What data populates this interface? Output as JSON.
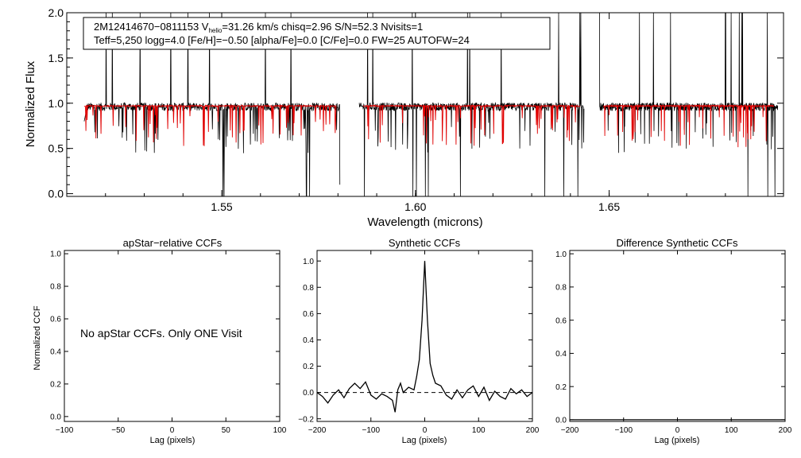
{
  "colors": {
    "observed": "#000000",
    "model": "#e00000",
    "background": "#ffffff"
  },
  "chart_data": [
    {
      "type": "line",
      "title": "",
      "xlabel": "Wavelength (microns)",
      "ylabel": "Normalized Flux",
      "xlim": [
        1.51,
        1.695
      ],
      "ylim": [
        -0.03,
        2.0
      ],
      "xticks": [
        "1.55",
        "1.60",
        "1.65"
      ],
      "xtick_values": [
        1.55,
        1.6,
        1.65
      ],
      "yticks": [
        "0.0",
        "0.5",
        "1.0",
        "1.5",
        "2.0"
      ],
      "ytick_values": [
        0.0,
        0.5,
        1.0,
        1.5,
        2.0
      ],
      "detector_ranges": [
        [
          1.5145,
          1.5805
        ],
        [
          1.5855,
          1.6435
        ],
        [
          1.6475,
          1.6935
        ]
      ],
      "model_ranges": [
        [
          1.5145,
          1.5795
        ],
        [
          1.5865,
          1.6425
        ],
        [
          1.6485,
          1.6925
        ]
      ],
      "continuum_level": 0.96,
      "model_level": 0.97,
      "annotation": {
        "line1_prefix": "2M12414670−0811153  V",
        "line1_sub": "helio",
        "line1_suffix": "=31.26 km/s  chisq=2.96  S/N=52.3  Nvisits=1",
        "line2": "Teff=5,250 logg=4.0 [Fe/H]=−0.50 [alpha/Fe]=0.0 [C/Fe]=0.0 FW=25 AUTOFW=24"
      }
    },
    {
      "type": "line",
      "title": "apStar−relative CCFs",
      "xlabel": "Lag (pixels)",
      "ylabel": "Normalized CCF",
      "xlim": [
        -100,
        100
      ],
      "ylim": [
        -0.03,
        1.02
      ],
      "xticks": [
        "−100",
        "−50",
        "0",
        "50",
        "100"
      ],
      "xtick_values": [
        -100,
        -50,
        0,
        50,
        100
      ],
      "yticks": [
        "0.0",
        "0.2",
        "0.4",
        "0.6",
        "0.8",
        "1.0"
      ],
      "ytick_values": [
        0.0,
        0.2,
        0.4,
        0.6,
        0.8,
        1.0
      ],
      "note": "No apStar CCFs.  Only ONE Visit",
      "series": []
    },
    {
      "type": "line",
      "title": "Synthetic CCFs",
      "xlabel": "Lag (pixels)",
      "ylabel": "",
      "xlim": [
        -200,
        200
      ],
      "ylim": [
        -0.22,
        1.08
      ],
      "xticks": [
        "−200",
        "−100",
        "0",
        "100",
        "200"
      ],
      "xtick_values": [
        -200,
        -100,
        0,
        100,
        200
      ],
      "yticks": [
        "−0.2",
        "0.0",
        "0.2",
        "0.4",
        "0.6",
        "0.8",
        "1.0"
      ],
      "ytick_values": [
        -0.2,
        0.0,
        0.2,
        0.4,
        0.6,
        0.8,
        1.0
      ],
      "zero_line": 0.0,
      "peak": {
        "x": 0,
        "y": 1.0
      },
      "x": [
        -200,
        -190,
        -180,
        -170,
        -160,
        -150,
        -140,
        -130,
        -120,
        -110,
        -100,
        -90,
        -80,
        -70,
        -60,
        -55,
        -50,
        -45,
        -40,
        -30,
        -20,
        -15,
        -10,
        -5,
        0,
        5,
        10,
        15,
        20,
        30,
        40,
        50,
        60,
        70,
        80,
        90,
        100,
        110,
        120,
        130,
        140,
        150,
        160,
        170,
        180,
        190,
        200
      ],
      "y": [
        0.0,
        -0.03,
        -0.08,
        -0.02,
        0.02,
        -0.04,
        0.03,
        0.07,
        0.03,
        0.08,
        -0.02,
        -0.05,
        -0.01,
        -0.03,
        -0.06,
        -0.15,
        0.02,
        0.07,
        0.0,
        0.04,
        0.02,
        0.12,
        0.25,
        0.55,
        1.0,
        0.55,
        0.22,
        0.13,
        0.07,
        0.05,
        -0.02,
        -0.05,
        0.02,
        -0.04,
        0.02,
        0.05,
        -0.03,
        0.04,
        -0.06,
        0.01,
        -0.03,
        -0.05,
        0.03,
        -0.01,
        0.02,
        -0.03,
        0.0
      ]
    },
    {
      "type": "line",
      "title": "Difference Synthetic CCFs",
      "xlabel": "Lag (pixels)",
      "ylabel": "",
      "xlim": [
        -200,
        200
      ],
      "ylim": [
        -0.01,
        1.02
      ],
      "xticks": [
        "−200",
        "−100",
        "0",
        "100",
        "200"
      ],
      "xtick_values": [
        -200,
        -100,
        0,
        100,
        200
      ],
      "yticks": [
        "0.0",
        "0.2",
        "0.4",
        "0.6",
        "0.8",
        "1.0"
      ],
      "ytick_values": [
        0.0,
        0.2,
        0.4,
        0.6,
        0.8,
        1.0
      ],
      "x": [
        -200,
        200
      ],
      "y": [
        0.0,
        0.0
      ]
    }
  ]
}
